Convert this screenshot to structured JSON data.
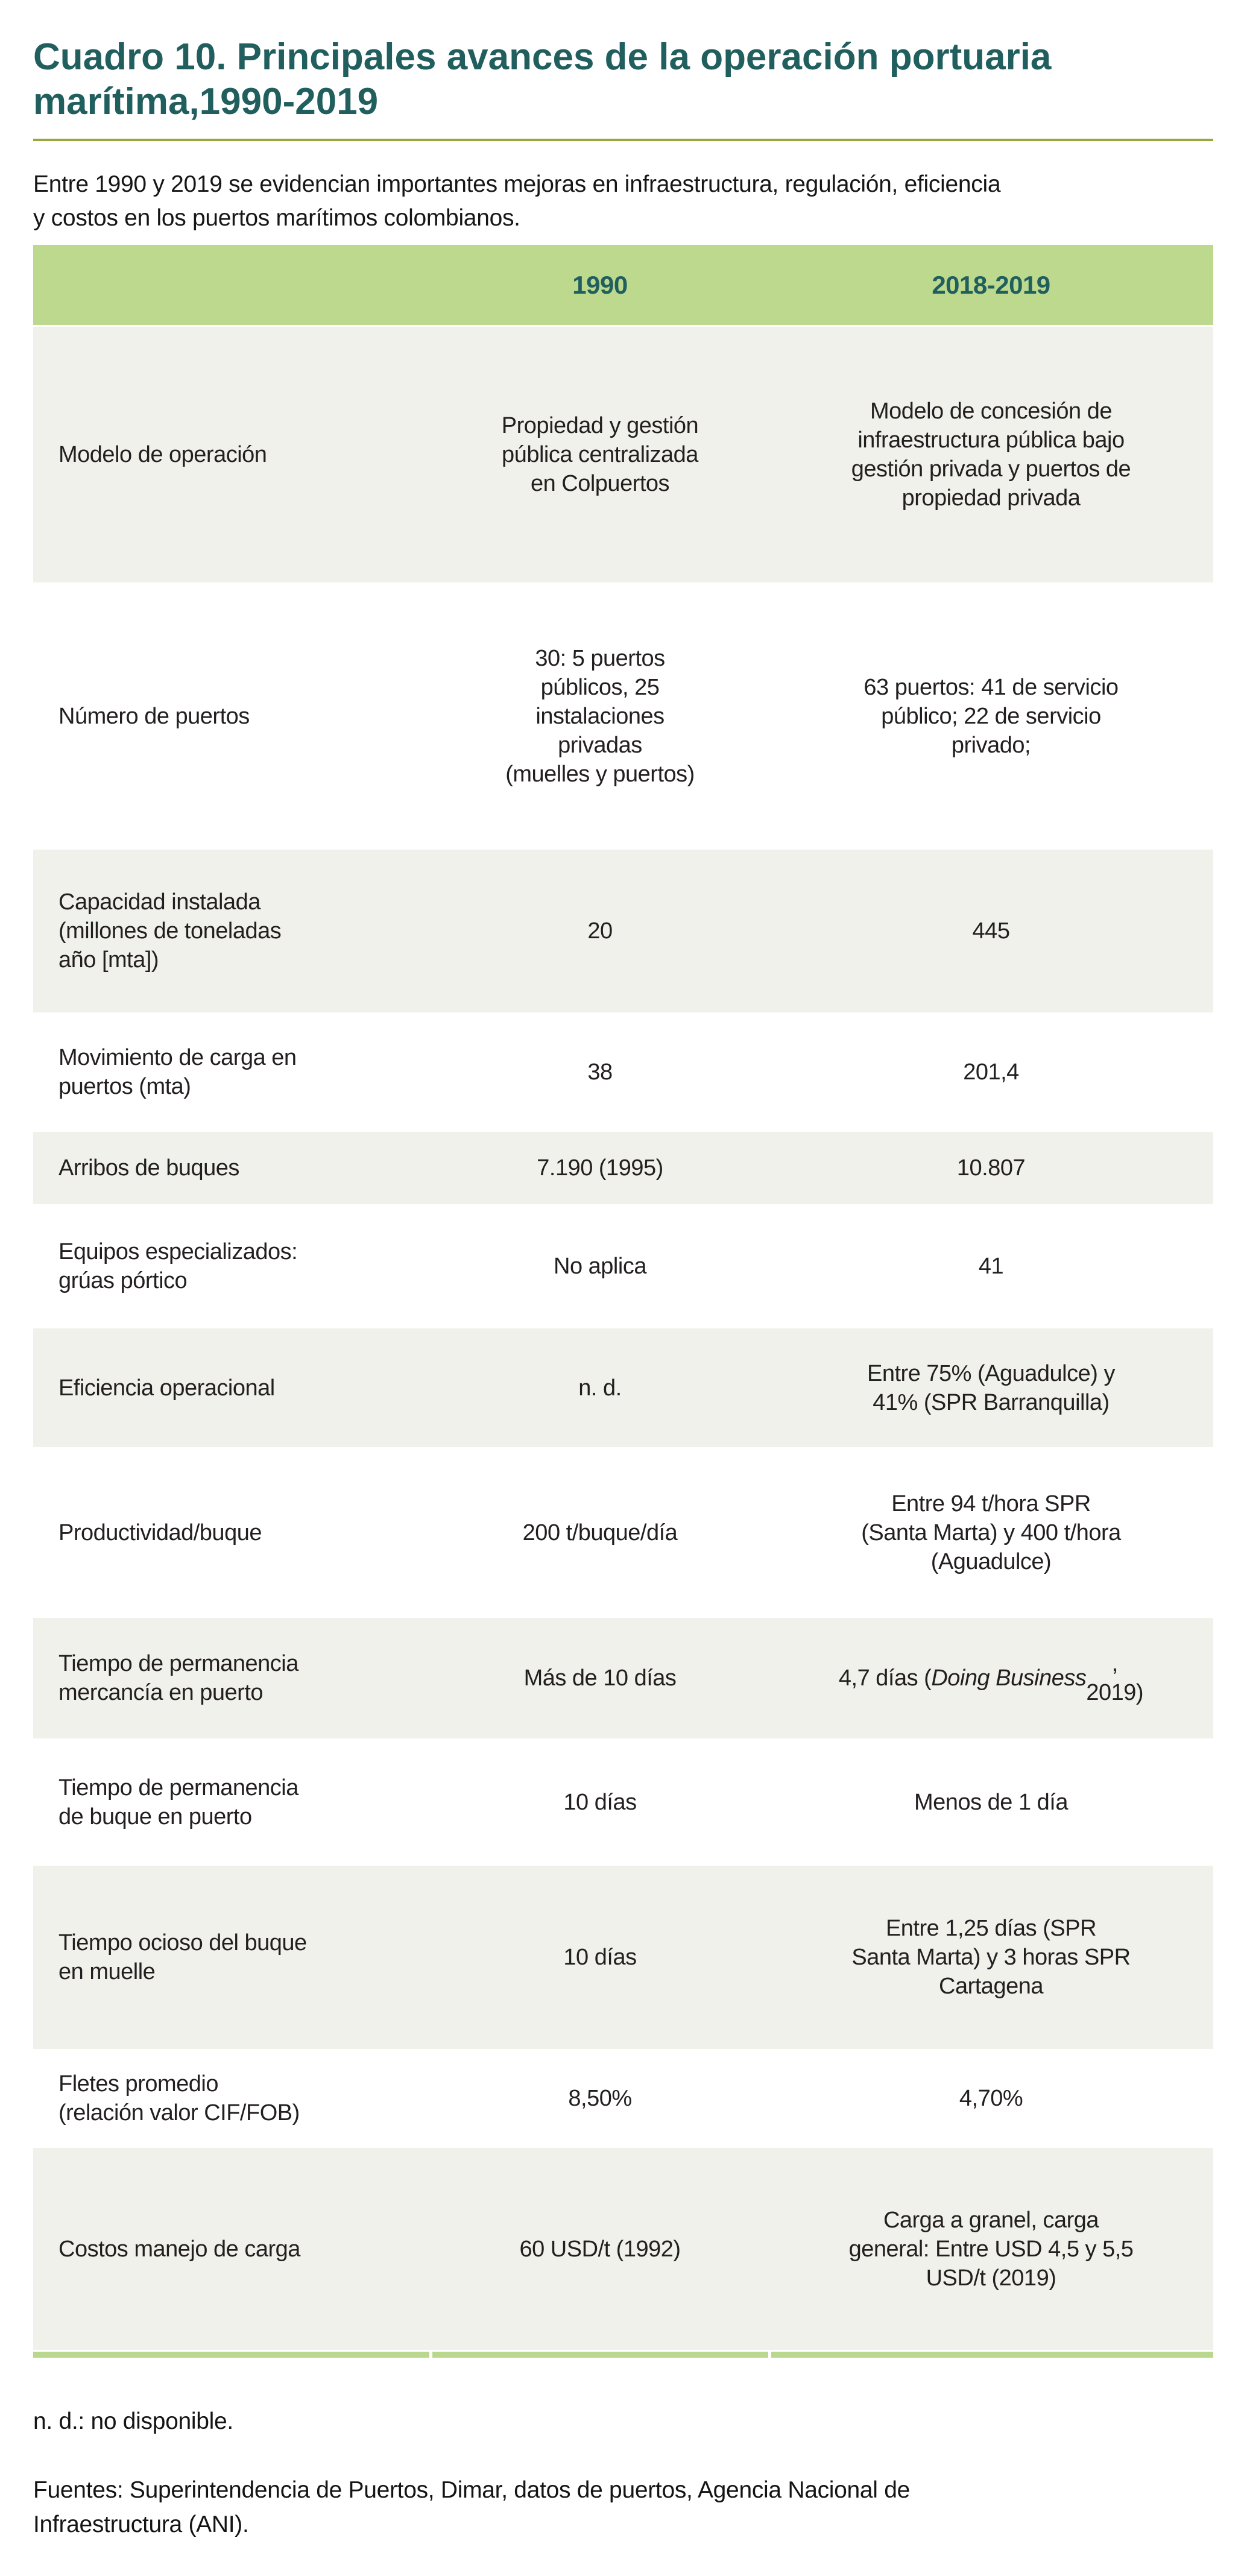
{
  "title": "Cuadro 10. Principales avances de la operación portuaria\nmarítima,1990-2019",
  "intro": "Entre 1990 y 2019 se evidencian importantes mejoras en infraestructura, regulación, eficiencia\ny costos en los puertos marítimos colombianos.",
  "table": {
    "col_1990": "1990",
    "col_2019": "2018-2019",
    "rows": [
      {
        "label": "Modelo de operación",
        "v1990": "Propiedad y gestión\npública centralizada\nen Colpuertos",
        "v2019": "Modelo de concesión de\ninfraestructura pública bajo\ngestión privada y puertos de\npropiedad privada"
      },
      {
        "label": "Número de puertos",
        "v1990": "30: 5 puertos\npúblicos, 25\ninstalaciones\nprivadas\n(muelles y puertos)",
        "v2019": "63 puertos: 41 de servicio\npúblico; 22 de servicio\nprivado;"
      },
      {
        "label": "Capacidad instalada\n(millones de toneladas\naño [mta])",
        "v1990": "20",
        "v2019": "445"
      },
      {
        "label": "Movimiento de carga en\npuertos (mta)",
        "v1990": "38",
        "v2019": "201,4"
      },
      {
        "label": "Arribos de buques",
        "v1990": "7.190 (1995)",
        "v2019": "10.807"
      },
      {
        "label": "Equipos especializados:\ngrúas pórtico",
        "v1990": "No aplica",
        "v2019": "41"
      },
      {
        "label": "Eficiencia operacional",
        "v1990": "n. d.",
        "v2019": "Entre 75% (Aguadulce) y\n41% (SPR Barranquilla)"
      },
      {
        "label": "Productividad/buque",
        "v1990": "200 t/buque/día",
        "v2019": "Entre 94 t/hora SPR\n(Santa Marta) y 400 t/hora\n(Aguadulce)"
      },
      {
        "label": "Tiempo de permanencia\nmercancía en puerto",
        "v1990": "Más de 10 días",
        "v2019_parts": {
          "pre": "4,7 días (",
          "italic": "Doing Business",
          "post": ",\n2019)"
        }
      },
      {
        "label": "Tiempo de permanencia\nde buque en puerto",
        "v1990": "10 días",
        "v2019": "Menos de 1 día"
      },
      {
        "label": "Tiempo ocioso del buque\nen muelle",
        "v1990": "10 días",
        "v2019": "Entre 1,25 días (SPR\nSanta Marta) y 3 horas SPR\nCartagena"
      },
      {
        "label": "Fletes promedio\n(relación valor CIF/FOB)",
        "v1990": "8,50%",
        "v2019": "4,70%"
      },
      {
        "label": "Costos manejo de carga",
        "v1990": "60 USD/t (1992)",
        "v2019": "Carga a granel, carga\ngeneral: Entre USD 4,5 y 5,5\nUSD/t (2019)"
      }
    ]
  },
  "notes": {
    "nd": "n. d.: no disponible.",
    "sources": "Fuentes: Superintendencia de Puertos, Dimar, datos de puertos, Agencia Nacional de\nInfraestructura (ANI)."
  },
  "colors": {
    "teal": "#215e5e",
    "header-green": "#bcd98e",
    "row-gray": "#f0f1ea",
    "divider-olive": "#97a83f",
    "bar-green": "#b9d88e",
    "text": "#231f20"
  }
}
